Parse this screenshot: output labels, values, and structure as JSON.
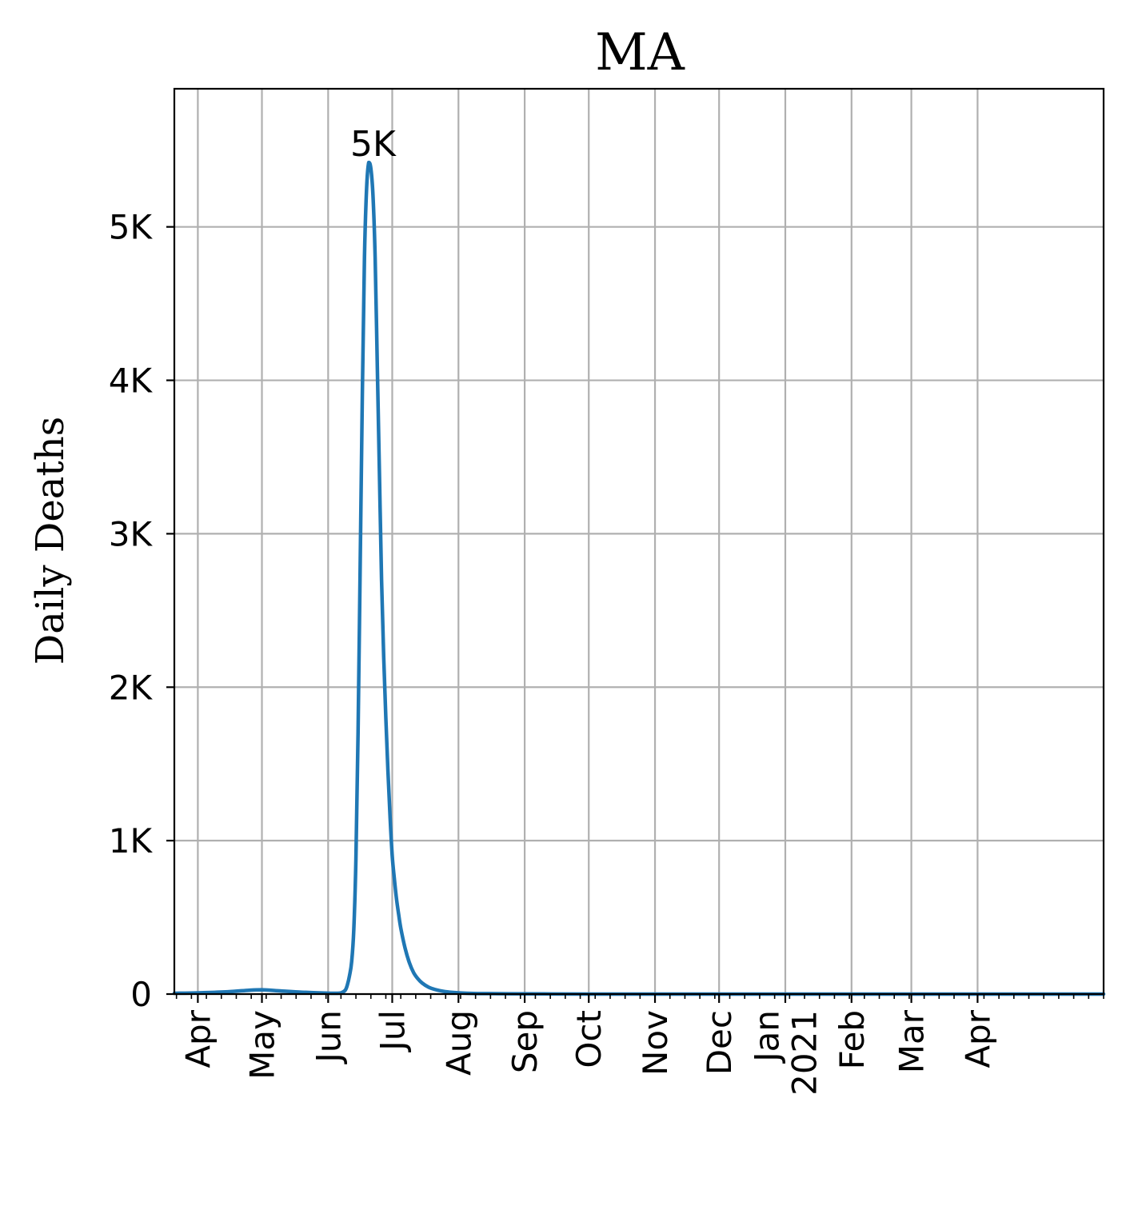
{
  "chart_data": {
    "type": "line",
    "title": "MA",
    "ylabel": "Daily Deaths",
    "xlabel": "",
    "xlim": [
      "2020-03-21",
      "2021-05-30"
    ],
    "ylim": [
      0,
      5900
    ],
    "grid": true,
    "line_color": "#1f77b4",
    "yticks": [
      {
        "value": 0,
        "label": "0"
      },
      {
        "value": 1000,
        "label": "1K"
      },
      {
        "value": 2000,
        "label": "2K"
      },
      {
        "value": 3000,
        "label": "3K"
      },
      {
        "value": 4000,
        "label": "4K"
      },
      {
        "value": 5000,
        "label": "5K"
      }
    ],
    "xticks": [
      {
        "date": "2020-04-01",
        "label": "Apr"
      },
      {
        "date": "2020-05-01",
        "label": "May"
      },
      {
        "date": "2020-06-01",
        "label": "Jun"
      },
      {
        "date": "2020-07-01",
        "label": "Jul"
      },
      {
        "date": "2020-08-01",
        "label": "Aug"
      },
      {
        "date": "2020-09-01",
        "label": "Sep"
      },
      {
        "date": "2020-10-01",
        "label": "Oct"
      },
      {
        "date": "2020-11-01",
        "label": "Nov"
      },
      {
        "date": "2020-12-01",
        "label": "Dec"
      },
      {
        "date": "2021-01-01",
        "label": "Jan\n2021"
      },
      {
        "date": "2021-02-01",
        "label": "Feb"
      },
      {
        "date": "2021-03-01",
        "label": "Mar"
      },
      {
        "date": "2021-04-01",
        "label": "Apr"
      }
    ],
    "annotations": [
      {
        "date": "2020-06-22",
        "value": 5420,
        "text": "5K"
      }
    ],
    "series": [
      {
        "x": [
          "2020-03-21",
          "2020-04-01",
          "2020-04-15",
          "2020-04-25",
          "2020-05-01",
          "2020-05-10",
          "2020-05-20",
          "2020-06-01",
          "2020-06-05",
          "2020-06-07",
          "2020-06-09",
          "2020-06-10",
          "2020-06-11",
          "2020-06-12",
          "2020-06-13",
          "2020-06-14",
          "2020-06-15",
          "2020-06-16",
          "2020-06-17",
          "2020-06-18",
          "2020-06-19",
          "2020-06-20",
          "2020-06-21",
          "2020-06-22",
          "2020-06-23",
          "2020-06-24",
          "2020-06-25",
          "2020-06-26",
          "2020-06-27",
          "2020-06-28",
          "2020-06-29",
          "2020-06-30",
          "2020-07-01",
          "2020-07-02",
          "2020-07-03",
          "2020-07-04",
          "2020-07-05",
          "2020-07-07",
          "2020-07-09",
          "2020-07-11",
          "2020-07-13",
          "2020-07-15",
          "2020-07-18",
          "2020-07-21",
          "2020-07-25",
          "2020-07-29",
          "2020-08-02",
          "2020-08-08",
          "2020-08-15",
          "2020-08-25",
          "2020-09-10",
          "2020-10-01",
          "2021-01-01",
          "2021-05-30"
        ],
        "values": [
          5,
          8,
          15,
          25,
          28,
          20,
          12,
          6,
          5,
          8,
          25,
          60,
          120,
          210,
          420,
          880,
          1700,
          2800,
          3900,
          4800,
          5250,
          5420,
          5380,
          5200,
          4800,
          4100,
          3400,
          2700,
          2200,
          1800,
          1450,
          1150,
          900,
          750,
          620,
          520,
          430,
          300,
          205,
          140,
          100,
          72,
          45,
          30,
          18,
          11,
          7,
          4,
          3,
          2,
          1,
          0,
          0,
          0
        ]
      }
    ]
  }
}
